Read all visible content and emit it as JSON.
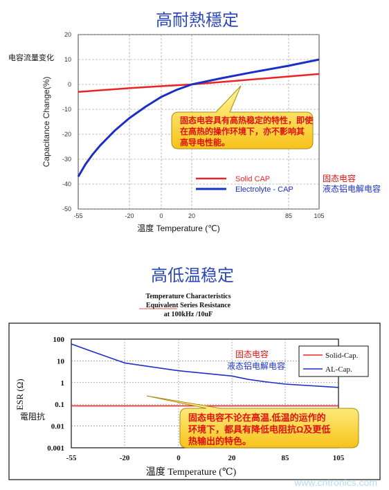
{
  "chart_data": [
    {
      "type": "line",
      "title": "高耐熱穩定",
      "ylabel": "Capacitance Change(%)",
      "ylabel_cn": "电容流量变化",
      "xlabel": "温度 Temperature (℃)",
      "xlim": [
        -55,
        105
      ],
      "ylim": [
        -50,
        20
      ],
      "x_ticks": [
        "-55",
        "-20",
        "0",
        "20",
        "85",
        "105"
      ],
      "y_ticks": [
        "20",
        "10",
        "0",
        "-10",
        "-20",
        "-30",
        "-40",
        "-50"
      ],
      "grid": true,
      "legend_position": "bottom-right",
      "series": [
        {
          "name": "Solid CAP",
          "name_cn": "固态电容",
          "color": "#ee2222",
          "x": [
            -55,
            -20,
            0,
            20,
            85,
            105
          ],
          "y": [
            -3,
            -1.5,
            -0.7,
            0,
            3.2,
            4.2
          ]
        },
        {
          "name": "Electrolyte - CAP",
          "name_cn": "液态铝电解电容",
          "color": "#1a2fc8",
          "x": [
            -55,
            -50,
            -45,
            -40,
            -35,
            -30,
            -25,
            -20,
            -10,
            0,
            10,
            20,
            40,
            60,
            85,
            105
          ],
          "y": [
            -37,
            -32,
            -28,
            -24.5,
            -21.5,
            -18.5,
            -16,
            -13.5,
            -9,
            -5,
            -2.2,
            0,
            2.5,
            4.8,
            7.5,
            10
          ]
        }
      ],
      "annotation": "固态电容具有高热稳定的特性，即使在高热的操作环境下，亦不影响其高导电性能。"
    },
    {
      "type": "line",
      "title": "高低温稳定",
      "subtitle": [
        "Temperature Characteristics",
        "Equivalent Series Resistance",
        "at 100kHz /10uF"
      ],
      "ylabel": "ESR (Ω)",
      "ylabel_cn": "電阻抗",
      "xlabel": "温度 Temperature (℃)",
      "xlim": [
        -55,
        105
      ],
      "y_scale": "log",
      "ylim": [
        0.001,
        100
      ],
      "x_ticks": [
        "-55",
        "-20",
        "0",
        "20",
        "85",
        "105"
      ],
      "y_ticks": [
        "100",
        "10",
        "1",
        "0.1",
        "0.01",
        "0.001"
      ],
      "grid": true,
      "legend_position": "top-right",
      "series": [
        {
          "name": "Solid-Cap.",
          "color": "#ee2222",
          "x": [
            -55,
            -20,
            0,
            20,
            85,
            105
          ],
          "y": [
            0.085,
            0.085,
            0.085,
            0.085,
            0.085,
            0.085
          ]
        },
        {
          "name": "AL-Cap.",
          "color": "#1a2fc8",
          "x": [
            -55,
            -40,
            -20,
            0,
            20,
            40,
            60,
            85,
            105
          ],
          "y": [
            60,
            25,
            8,
            3.5,
            2,
            1.4,
            1.1,
            0.85,
            0.6
          ]
        }
      ],
      "series_labels_cn": [
        "固态电容",
        "液态铝电解电容"
      ],
      "annotation": "固态电容不论在高温.低温的运作的环境下，都具有降低电阻抗Ω及更低热输出的特色。"
    }
  ],
  "watermark": "www.cntronics.com"
}
